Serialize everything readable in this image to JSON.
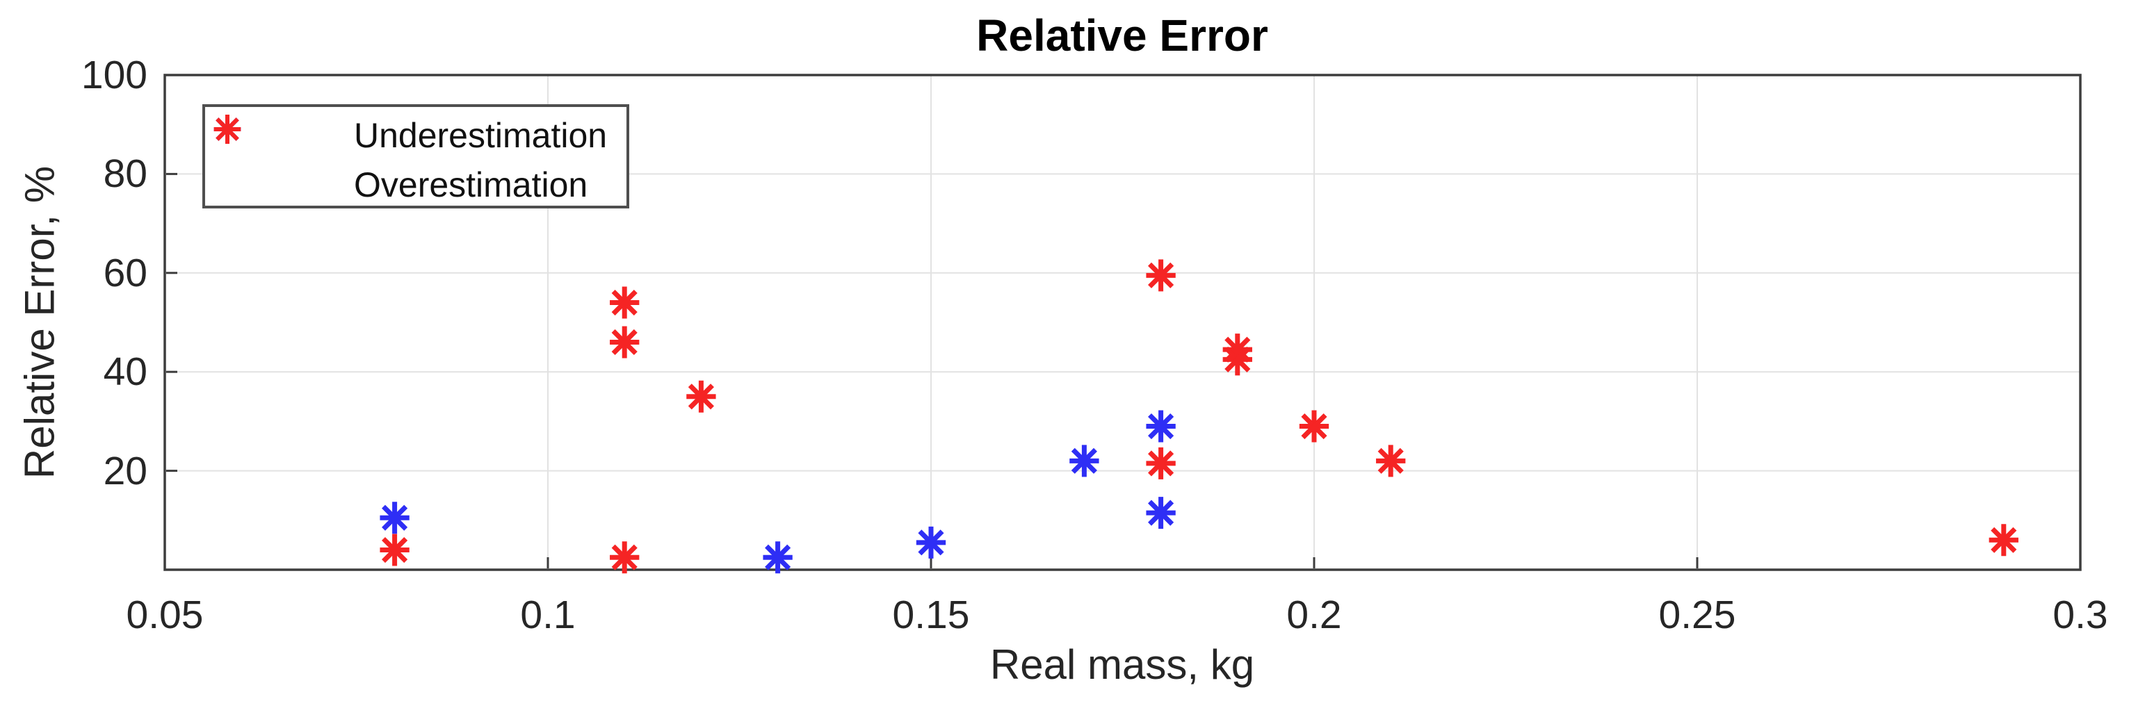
{
  "figure": {
    "background": "#ffffff"
  },
  "chart_data": {
    "type": "scatter",
    "title": "Relative Error",
    "xlabel": "Real mass, kg",
    "ylabel": "Relative Error, %",
    "xlim": [
      0.05,
      0.3
    ],
    "ylim": [
      0,
      100
    ],
    "grid": true,
    "legend_position": "top-left",
    "marker_style": "asterisk",
    "xticks": [
      {
        "value": 0.05,
        "label": "0.05"
      },
      {
        "value": 0.1,
        "label": "0.1"
      },
      {
        "value": 0.15,
        "label": "0.15"
      },
      {
        "value": 0.2,
        "label": "0.2"
      },
      {
        "value": 0.25,
        "label": "0.25"
      },
      {
        "value": 0.3,
        "label": "0.3"
      }
    ],
    "yticks": [
      {
        "value": 20,
        "label": "20"
      },
      {
        "value": 40,
        "label": "40"
      },
      {
        "value": 60,
        "label": "60"
      },
      {
        "value": 80,
        "label": "80"
      },
      {
        "value": 100,
        "label": "100"
      }
    ],
    "series": [
      {
        "name": "Underestimation",
        "color": "#2e2ef5",
        "points": [
          [
            0.08,
            10.5
          ],
          [
            0.13,
            2.5
          ],
          [
            0.15,
            5.5
          ],
          [
            0.17,
            22
          ],
          [
            0.18,
            29
          ],
          [
            0.18,
            11.5
          ]
        ]
      },
      {
        "name": "Overestimation",
        "color": "#f52424",
        "points": [
          [
            0.08,
            4
          ],
          [
            0.11,
            54
          ],
          [
            0.11,
            46
          ],
          [
            0.11,
            2.5
          ],
          [
            0.12,
            35
          ],
          [
            0.18,
            59.5
          ],
          [
            0.18,
            21.5
          ],
          [
            0.19,
            44.5
          ],
          [
            0.19,
            42.5
          ],
          [
            0.2,
            29
          ],
          [
            0.21,
            22
          ],
          [
            0.29,
            6
          ]
        ]
      }
    ],
    "colors": {
      "axis": "#3d3d3d",
      "grid": "#e2e2e2",
      "tick_label": "#262626"
    }
  }
}
